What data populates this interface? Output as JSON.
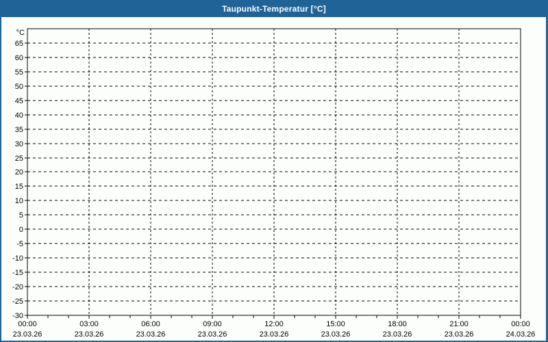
{
  "window": {
    "title": "Taupunkt-Temperatur [°C]"
  },
  "colors": {
    "titlebar_bg": "#1f6397",
    "titlebar_text": "#ffffff",
    "page_bg": "#fcfefb",
    "frame_border": "#1f6397",
    "axis": "#000000",
    "grid": "#000000",
    "tick_label": "#000000"
  },
  "chart_data": {
    "type": "line",
    "title": "Taupunkt-Temperatur [°C]",
    "xlabel": "",
    "ylabel": "°C",
    "ylim": [
      -30,
      70
    ],
    "y_tick_step": 5,
    "y_ticks": [
      65,
      60,
      55,
      50,
      45,
      40,
      35,
      30,
      25,
      20,
      15,
      10,
      5,
      0,
      -5,
      -10,
      -15,
      -20,
      -25,
      -30
    ],
    "x_ticks": [
      {
        "time": "00:00",
        "date": "23.03.26"
      },
      {
        "time": "03:00",
        "date": "23.03.26"
      },
      {
        "time": "06:00",
        "date": "23.03.26"
      },
      {
        "time": "09:00",
        "date": "23.03.26"
      },
      {
        "time": "12:00",
        "date": "23.03.26"
      },
      {
        "time": "15:00",
        "date": "23.03.26"
      },
      {
        "time": "18:00",
        "date": "23.03.26"
      },
      {
        "time": "21:00",
        "date": "23.03.26"
      },
      {
        "time": "00:00",
        "date": "24.03.26"
      }
    ],
    "x_minor_ticks_per_major": 3,
    "grid": "dashed",
    "legend": "none",
    "series": []
  }
}
